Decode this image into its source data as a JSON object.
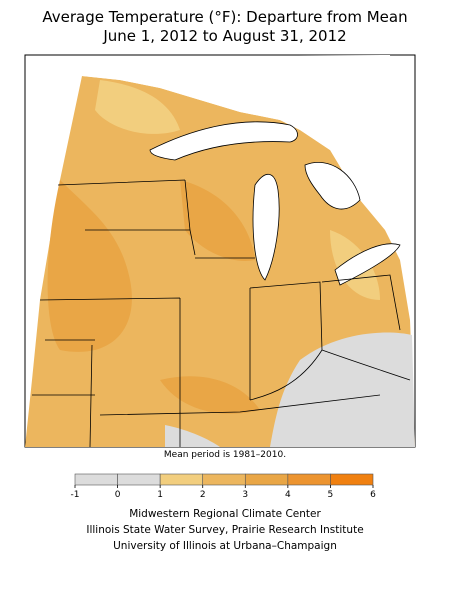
{
  "header": {
    "title": "Average Temperature (°F): Departure from Mean",
    "subtitle": "June 1, 2012 to August 31, 2012"
  },
  "note": "Mean period is 1981–2010.",
  "legend": {
    "ticks": [
      -1,
      0,
      1,
      2,
      3,
      4,
      5,
      6
    ],
    "colors": [
      "#dcdcdc",
      "#dcdcdc",
      "#f2ce7e",
      "#ecb65e",
      "#e9a646",
      "#ec9430",
      "#f08010"
    ]
  },
  "credits": [
    "Midwestern Regional Climate Center",
    "Illinois State Water Survey, Prairie Research Institute",
    "University of Illinois at Urbana–Champaign"
  ]
}
